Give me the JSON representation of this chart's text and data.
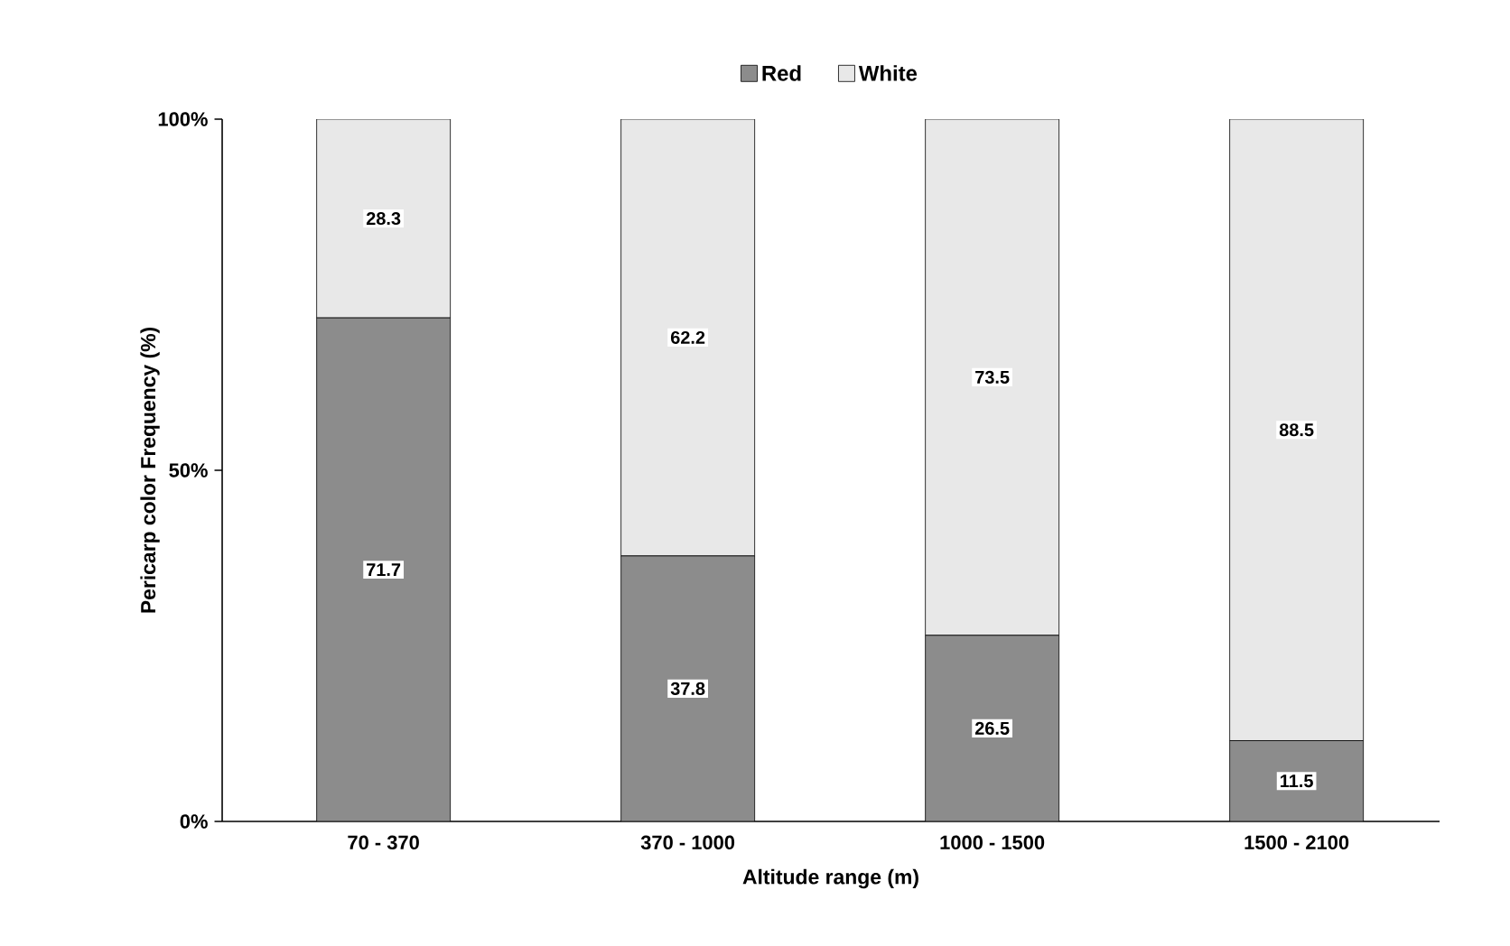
{
  "chart_data": {
    "type": "bar",
    "stacked": true,
    "xlabel": "Altitude range (m)",
    "ylabel": "Pericarp color Frequency (%)",
    "categories": [
      "70 - 370",
      "370 - 1000",
      "1000 - 1500",
      "1500 - 2100"
    ],
    "series": [
      {
        "name": "Red",
        "color": "#8c8c8c",
        "values": [
          71.7,
          37.8,
          26.5,
          11.5
        ],
        "value_labels": [
          "71.7",
          "37.8",
          "26.5",
          "11.5"
        ]
      },
      {
        "name": "White",
        "color": "#e8e8e8",
        "values": [
          28.3,
          62.2,
          73.5,
          88.5
        ],
        "value_labels": [
          "28.3",
          "62.2",
          "73.5",
          "88.5"
        ]
      }
    ],
    "ylim": [
      0,
      100
    ],
    "yticks": [
      {
        "value": 0,
        "label": "0%"
      },
      {
        "value": 50,
        "label": "50%"
      },
      {
        "value": 100,
        "label": "100%"
      }
    ],
    "legend": "top",
    "grid": false
  }
}
